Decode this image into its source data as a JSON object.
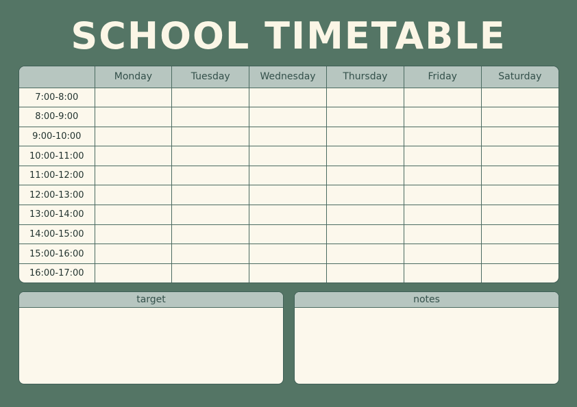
{
  "title": "SCHOOL TIMETABLE",
  "days": [
    "Monday",
    "Tuesday",
    "Wednesday",
    "Thursday",
    "Friday",
    "Saturday"
  ],
  "times": [
    "7:00-8:00",
    "8:00-9:00",
    "9:00-10:00",
    "10:00-11:00",
    "11:00-12:00",
    "12:00-13:00",
    "13:00-14:00",
    "14:00-15:00",
    "15:00-16:00",
    "16:00-17:00"
  ],
  "target": {
    "label": "target"
  },
  "notes": {
    "label": "notes"
  },
  "colors": {
    "background": "#547565",
    "header": "#b7c6c0",
    "cell": "#fcf8ec",
    "border": "#4a6a60"
  }
}
